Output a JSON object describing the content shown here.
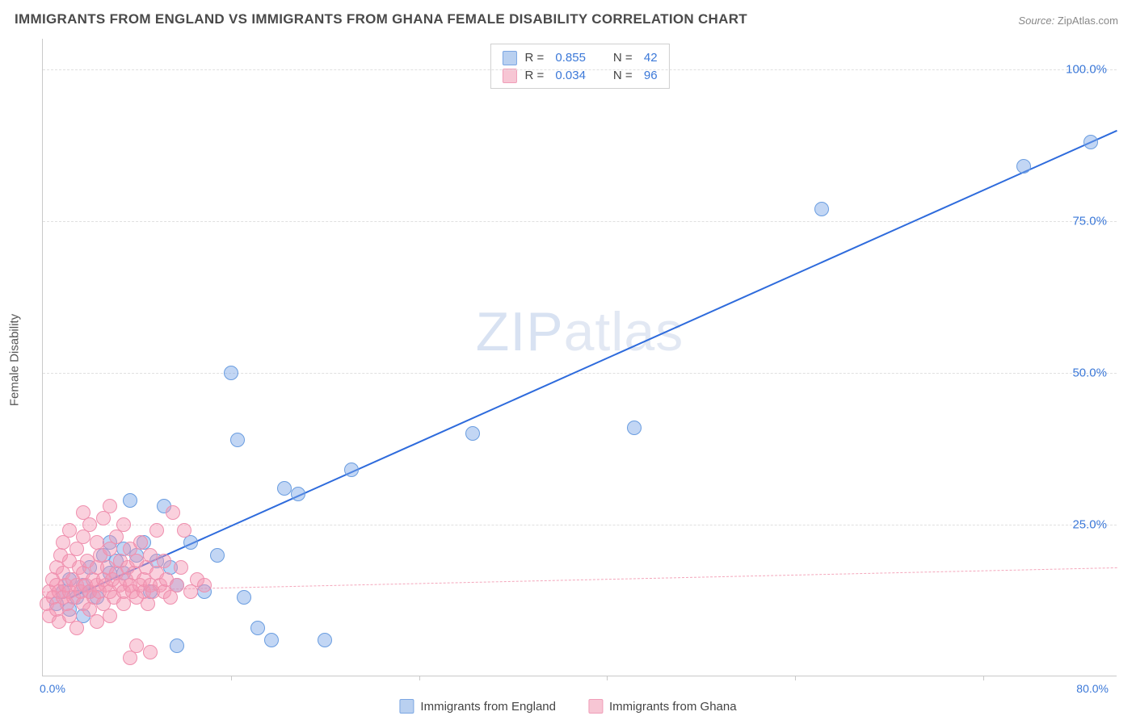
{
  "title": "IMMIGRANTS FROM ENGLAND VS IMMIGRANTS FROM GHANA FEMALE DISABILITY CORRELATION CHART",
  "source_label": "Source:",
  "source_value": "ZipAtlas.com",
  "watermark": {
    "bold": "ZIP",
    "thin": "atlas"
  },
  "yaxis_label": "Female Disability",
  "chart": {
    "type": "scatter",
    "background_color": "#ffffff",
    "grid_color": "#e0e0e0",
    "axis_color": "#c9c9c9",
    "tick_label_color": "#3b78d8",
    "xlim": [
      0,
      80
    ],
    "ylim": [
      0,
      105
    ],
    "yticks": [
      25,
      50,
      75,
      100
    ],
    "ytick_labels": [
      "25.0%",
      "50.0%",
      "75.0%",
      "100.0%"
    ],
    "xorigin_label": "0.0%",
    "xmax_label": "80.0%",
    "xtick_positions": [
      14,
      28,
      42,
      56,
      70
    ],
    "marker_radius": 9,
    "series": [
      {
        "name": "Immigrants from England",
        "fill": "rgba(120,165,230,0.45)",
        "stroke": "#6a9de0",
        "legend_fill": "#b9d0f0",
        "legend_stroke": "#7ba6e3",
        "R": "0.855",
        "N": "42",
        "trend": {
          "color": "#2e6bdc",
          "dash": false,
          "x1": 2,
          "y1": 13,
          "x2": 80,
          "y2": 90
        },
        "points": [
          [
            1,
            12
          ],
          [
            1.5,
            14
          ],
          [
            2,
            11
          ],
          [
            2,
            16
          ],
          [
            2.5,
            13
          ],
          [
            3,
            15
          ],
          [
            3,
            10
          ],
          [
            3.5,
            14
          ],
          [
            3.5,
            18
          ],
          [
            4,
            13
          ],
          [
            4.5,
            20
          ],
          [
            5,
            17
          ],
          [
            5,
            22
          ],
          [
            5.5,
            19
          ],
          [
            6,
            21
          ],
          [
            6,
            17
          ],
          [
            6.5,
            29
          ],
          [
            7,
            20
          ],
          [
            7.5,
            22
          ],
          [
            8,
            14
          ],
          [
            8.5,
            19
          ],
          [
            9,
            28
          ],
          [
            9.5,
            18
          ],
          [
            10,
            15
          ],
          [
            10,
            5
          ],
          [
            11,
            22
          ],
          [
            12,
            14
          ],
          [
            13,
            20
          ],
          [
            14,
            50
          ],
          [
            14.5,
            39
          ],
          [
            15,
            13
          ],
          [
            16,
            8
          ],
          [
            17,
            6
          ],
          [
            18,
            31
          ],
          [
            19,
            30
          ],
          [
            21,
            6
          ],
          [
            23,
            34
          ],
          [
            32,
            40
          ],
          [
            44,
            41
          ],
          [
            58,
            77
          ],
          [
            73,
            84
          ],
          [
            78,
            88
          ]
        ]
      },
      {
        "name": "Immigrants from Ghana",
        "fill": "rgba(244,150,180,0.45)",
        "stroke": "#ef8fae",
        "legend_fill": "#f7c6d4",
        "legend_stroke": "#f09db8",
        "R": "0.034",
        "N": "96",
        "trend": {
          "color": "#f4a6bb",
          "dash": true,
          "x1": 0,
          "y1": 14,
          "x2": 80,
          "y2": 18
        },
        "points": [
          [
            0.3,
            12
          ],
          [
            0.5,
            14
          ],
          [
            0.5,
            10
          ],
          [
            0.7,
            16
          ],
          [
            0.8,
            13
          ],
          [
            1,
            15
          ],
          [
            1,
            11
          ],
          [
            1,
            18
          ],
          [
            1.2,
            14
          ],
          [
            1.2,
            9
          ],
          [
            1.3,
            20
          ],
          [
            1.5,
            13
          ],
          [
            1.5,
            17
          ],
          [
            1.5,
            22
          ],
          [
            1.7,
            15
          ],
          [
            1.8,
            12
          ],
          [
            2,
            14
          ],
          [
            2,
            19
          ],
          [
            2,
            10
          ],
          [
            2,
            24
          ],
          [
            2.2,
            16
          ],
          [
            2.3,
            13
          ],
          [
            2.5,
            15
          ],
          [
            2.5,
            21
          ],
          [
            2.5,
            8
          ],
          [
            2.7,
            18
          ],
          [
            2.8,
            14
          ],
          [
            3,
            12
          ],
          [
            3,
            17
          ],
          [
            3,
            23
          ],
          [
            3,
            27
          ],
          [
            3.2,
            15
          ],
          [
            3.3,
            19
          ],
          [
            3.5,
            14
          ],
          [
            3.5,
            11
          ],
          [
            3.5,
            25
          ],
          [
            3.7,
            16
          ],
          [
            3.8,
            13
          ],
          [
            4,
            18
          ],
          [
            4,
            15
          ],
          [
            4,
            22
          ],
          [
            4,
            9
          ],
          [
            4.2,
            14
          ],
          [
            4.3,
            20
          ],
          [
            4.5,
            16
          ],
          [
            4.5,
            12
          ],
          [
            4.5,
            26
          ],
          [
            4.7,
            15
          ],
          [
            4.8,
            18
          ],
          [
            5,
            14
          ],
          [
            5,
            21
          ],
          [
            5,
            10
          ],
          [
            5,
            28
          ],
          [
            5.2,
            16
          ],
          [
            5.3,
            13
          ],
          [
            5.5,
            17
          ],
          [
            5.5,
            23
          ],
          [
            5.7,
            15
          ],
          [
            5.8,
            19
          ],
          [
            6,
            14
          ],
          [
            6,
            12
          ],
          [
            6,
            25
          ],
          [
            6.2,
            16
          ],
          [
            6.3,
            18
          ],
          [
            6.5,
            15
          ],
          [
            6.5,
            21
          ],
          [
            6.5,
            3
          ],
          [
            6.7,
            14
          ],
          [
            6.8,
            17
          ],
          [
            7,
            13
          ],
          [
            7,
            19
          ],
          [
            7,
            5
          ],
          [
            7.2,
            15
          ],
          [
            7.3,
            22
          ],
          [
            7.5,
            14
          ],
          [
            7.5,
            16
          ],
          [
            7.7,
            18
          ],
          [
            7.8,
            12
          ],
          [
            8,
            15
          ],
          [
            8,
            20
          ],
          [
            8,
            4
          ],
          [
            8.2,
            14
          ],
          [
            8.5,
            17
          ],
          [
            8.5,
            24
          ],
          [
            8.7,
            15
          ],
          [
            9,
            14
          ],
          [
            9,
            19
          ],
          [
            9.2,
            16
          ],
          [
            9.5,
            13
          ],
          [
            9.7,
            27
          ],
          [
            10,
            15
          ],
          [
            10.3,
            18
          ],
          [
            10.5,
            24
          ],
          [
            11,
            14
          ],
          [
            11.5,
            16
          ],
          [
            12,
            15
          ]
        ]
      }
    ]
  },
  "legend_bottom": [
    {
      "label": "Immigrants from England",
      "fill": "#b9d0f0",
      "stroke": "#7ba6e3"
    },
    {
      "label": "Immigrants from Ghana",
      "fill": "#f7c6d4",
      "stroke": "#f09db8"
    }
  ]
}
